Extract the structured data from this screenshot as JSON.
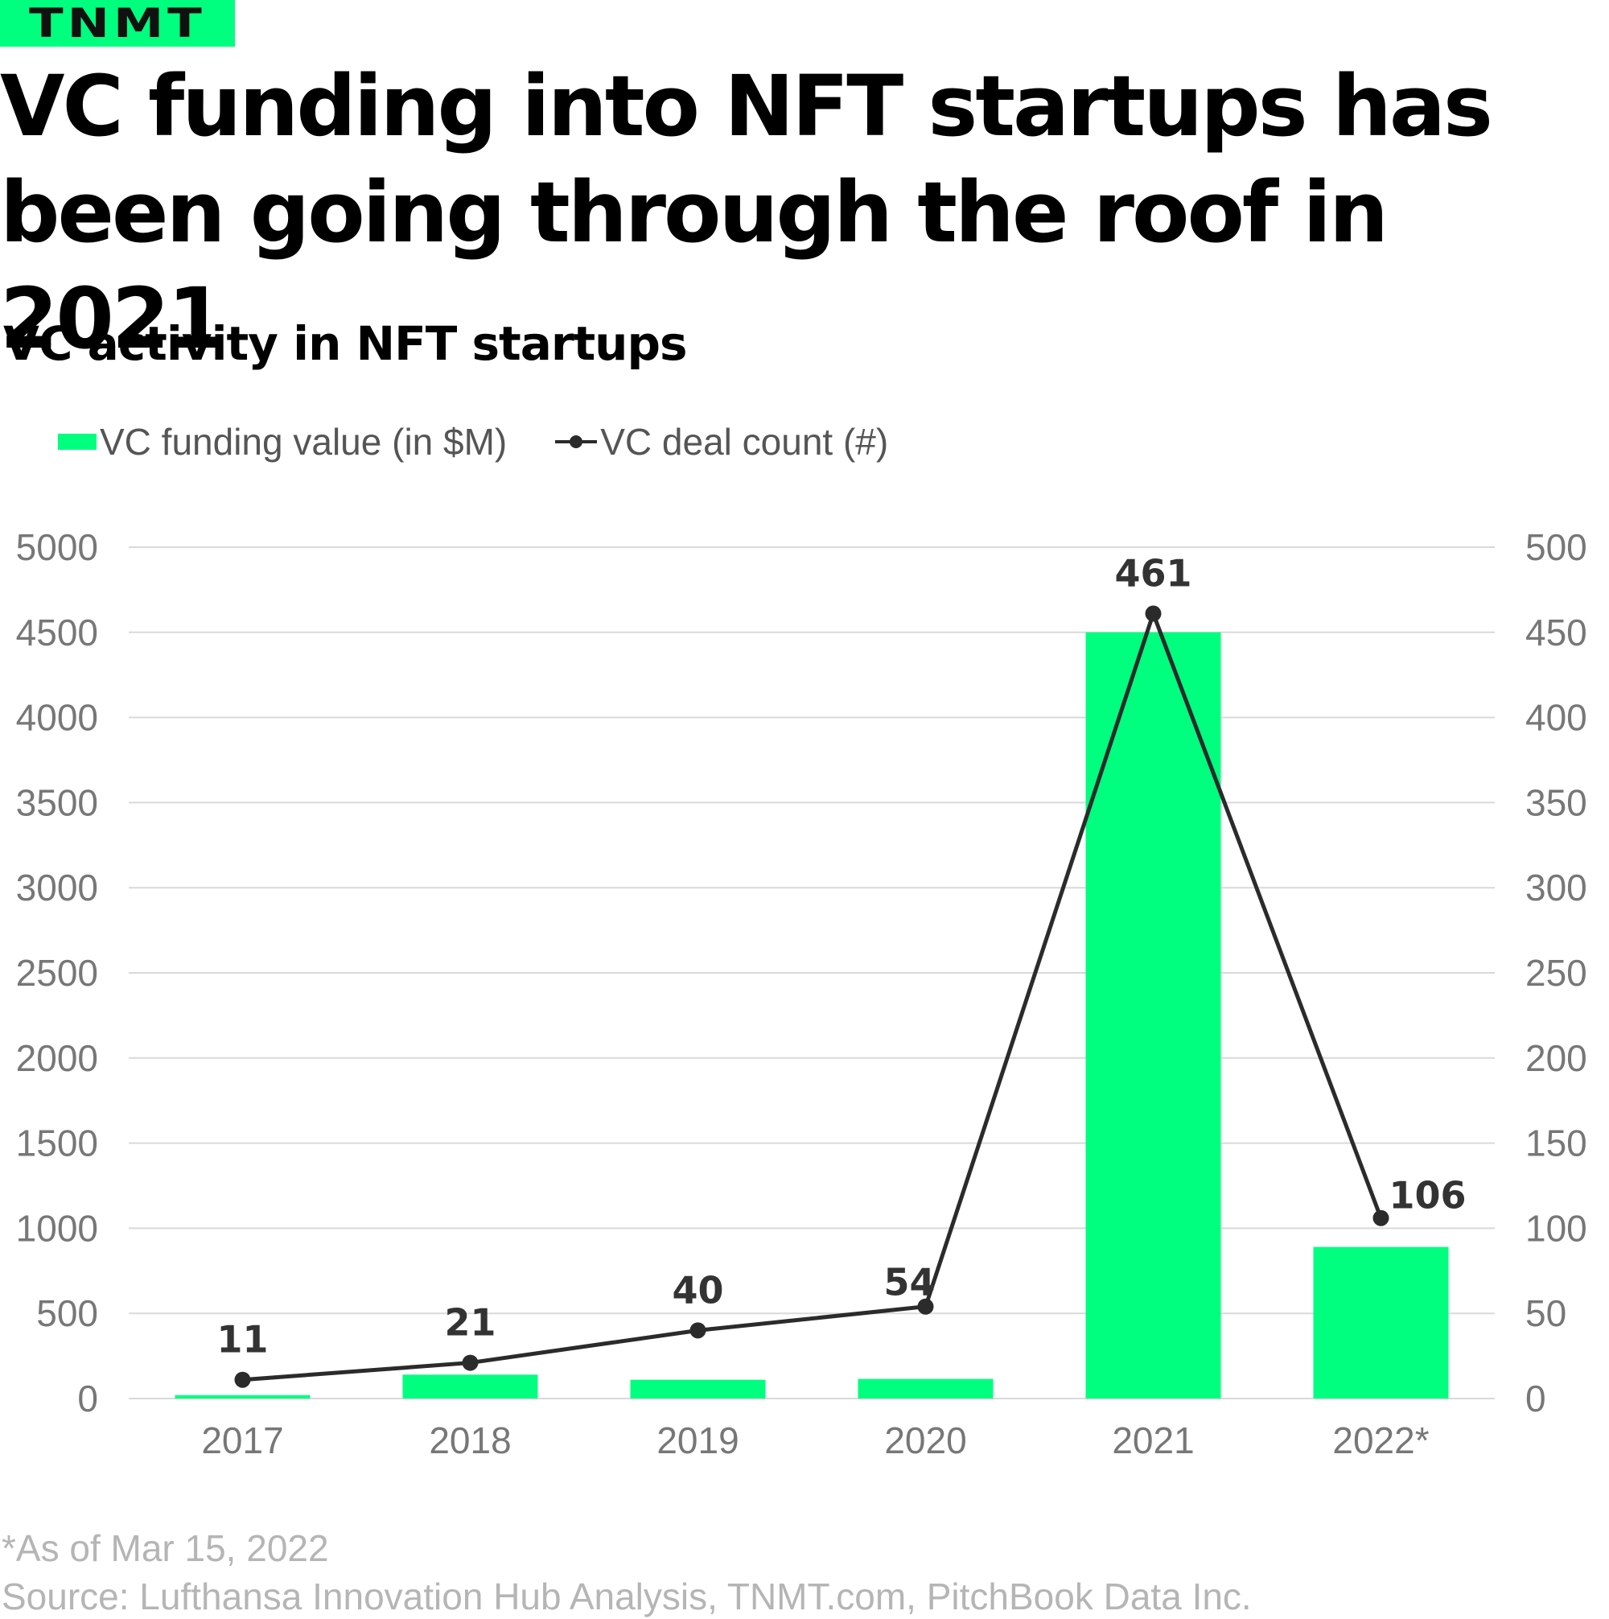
{
  "brand": {
    "logo_text": "TNMT"
  },
  "headline": {
    "line1": "VC funding into NFT startups has",
    "line2": "been going through the roof in 2021"
  },
  "subtitle": "VC activity in NFT startups",
  "legend": {
    "bar_label": "VC funding value (in $M)",
    "line_label": "VC deal count (#)"
  },
  "colors": {
    "accent": "#00ff7f",
    "line": "#2b2b2b",
    "grid": "#d9d9d9",
    "tick": "#777777"
  },
  "chart_data": {
    "type": "bar",
    "title": "VC activity in NFT startups",
    "categories": [
      "2017",
      "2018",
      "2019",
      "2020",
      "2021",
      "2022*"
    ],
    "series": [
      {
        "name": "VC funding value (in $M)",
        "type": "bar",
        "axis": "left",
        "values": [
          20,
          140,
          110,
          115,
          4500,
          890
        ]
      },
      {
        "name": "VC deal count (#)",
        "type": "line",
        "axis": "right",
        "values": [
          11,
          21,
          40,
          54,
          461,
          106
        ],
        "data_labels": [
          "11",
          "21",
          "40",
          "54",
          "461",
          "106"
        ]
      }
    ],
    "y_left": {
      "min": 0,
      "max": 5000,
      "ticks": [
        "0",
        "500",
        "1000",
        "1500",
        "2000",
        "2500",
        "3000",
        "3500",
        "4000",
        "4500",
        "5000"
      ]
    },
    "y_right": {
      "min": 0,
      "max": 500,
      "ticks": [
        "0",
        "50",
        "100",
        "150",
        "200",
        "250",
        "300",
        "350",
        "400",
        "450",
        "500"
      ]
    },
    "grid": true,
    "legend_position": "top-left"
  },
  "footnotes": {
    "note": "*As of Mar 15, 2022",
    "source": "Source: Lufthansa Innovation Hub Analysis, TNMT.com, PitchBook Data Inc."
  }
}
